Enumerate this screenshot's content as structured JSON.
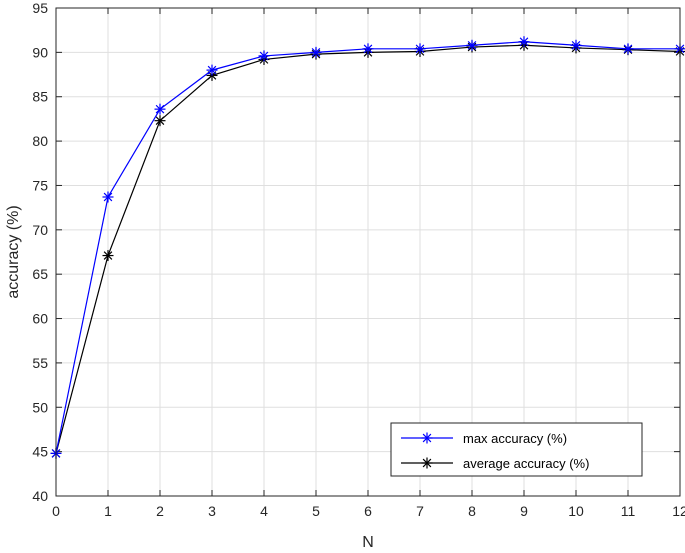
{
  "chart_data": {
    "type": "line",
    "xlabel": "N",
    "ylabel": "accuracy (%)",
    "xlim": [
      0,
      12
    ],
    "ylim": [
      40,
      95
    ],
    "xticks": [
      0,
      1,
      2,
      3,
      4,
      5,
      6,
      7,
      8,
      9,
      10,
      11,
      12
    ],
    "yticks": [
      40,
      45,
      50,
      55,
      60,
      65,
      70,
      75,
      80,
      85,
      90,
      95
    ],
    "grid": true,
    "legend_position": "bottom-right",
    "x": [
      0,
      1,
      2,
      3,
      4,
      5,
      6,
      7,
      8,
      9,
      10,
      11,
      12
    ],
    "series": [
      {
        "name": "max accuracy (%)",
        "color": "#0000ff",
        "marker": "asterisk",
        "values": [
          44.8,
          73.7,
          83.6,
          88.0,
          89.6,
          90.0,
          90.4,
          90.4,
          90.8,
          91.2,
          90.8,
          90.4,
          90.4
        ]
      },
      {
        "name": "average accuracy (%)",
        "color": "#000000",
        "marker": "asterisk",
        "values": [
          44.8,
          67.1,
          82.3,
          87.4,
          89.2,
          89.8,
          90.0,
          90.1,
          90.6,
          90.8,
          90.5,
          90.3,
          90.1
        ]
      }
    ]
  }
}
